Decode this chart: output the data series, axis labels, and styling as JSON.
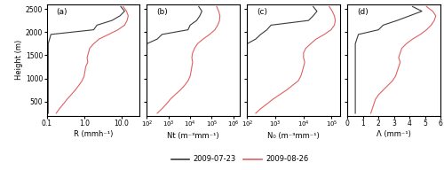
{
  "height": [
    250,
    350,
    450,
    550,
    650,
    750,
    850,
    950,
    1050,
    1150,
    1250,
    1350,
    1450,
    1550,
    1650,
    1750,
    1850,
    1950,
    2050,
    2150,
    2250,
    2350,
    2450,
    2550
  ],
  "R_black": [
    0.11,
    0.11,
    0.11,
    0.11,
    0.11,
    0.11,
    0.11,
    0.11,
    0.11,
    0.11,
    0.11,
    0.11,
    0.11,
    0.11,
    0.11,
    0.11,
    0.12,
    0.13,
    1.8,
    2.2,
    5.5,
    9.0,
    12.0,
    9.5
  ],
  "R_red": [
    0.18,
    0.22,
    0.28,
    0.35,
    0.45,
    0.58,
    0.72,
    0.88,
    1.0,
    1.05,
    1.1,
    1.25,
    1.2,
    1.3,
    1.4,
    1.8,
    2.5,
    4.5,
    8.0,
    12.0,
    14.0,
    15.0,
    13.5,
    11.0
  ],
  "Nt_black": [
    100,
    100,
    100,
    100,
    100,
    100,
    100,
    100,
    100,
    100,
    100,
    100,
    100,
    100,
    100,
    100,
    300,
    500,
    8000,
    10000,
    20000,
    28000,
    35000,
    25000
  ],
  "Nt_red": [
    300,
    500,
    800,
    1200,
    2000,
    3500,
    5500,
    8000,
    10000,
    11000,
    12000,
    13000,
    12000,
    13000,
    16000,
    22000,
    40000,
    80000,
    140000,
    190000,
    230000,
    240000,
    210000,
    170000
  ],
  "N0_black": [
    100,
    100,
    100,
    100,
    100,
    100,
    100,
    100,
    100,
    100,
    100,
    100,
    100,
    100,
    100,
    100,
    200,
    300,
    500,
    700,
    15000,
    22000,
    30000,
    22000
  ],
  "N0_red": [
    200,
    300,
    500,
    800,
    1400,
    2500,
    4000,
    6500,
    8000,
    9000,
    10000,
    11000,
    10000,
    10000,
    12000,
    18000,
    28000,
    55000,
    95000,
    125000,
    135000,
    125000,
    105000,
    82000
  ],
  "La_black": [
    0.5,
    0.5,
    0.5,
    0.5,
    0.5,
    0.5,
    0.5,
    0.5,
    0.5,
    0.5,
    0.5,
    0.5,
    0.5,
    0.5,
    0.5,
    0.5,
    0.6,
    0.7,
    2.0,
    2.3,
    3.2,
    4.0,
    4.8,
    4.2
  ],
  "La_red": [
    1.5,
    1.6,
    1.7,
    1.8,
    2.0,
    2.3,
    2.6,
    2.9,
    3.1,
    3.2,
    3.3,
    3.4,
    3.3,
    3.4,
    3.5,
    3.8,
    4.2,
    4.7,
    5.1,
    5.4,
    5.6,
    5.7,
    5.5,
    5.1
  ],
  "color_black": "#3a3a3a",
  "color_red": "#e06060",
  "ylim": [
    200,
    2600
  ],
  "yticks": [
    500,
    1000,
    1500,
    2000,
    2500
  ],
  "panel_labels": [
    "(a)",
    "(b)",
    "(c)",
    "(d)"
  ],
  "xlabels_raw": [
    "R (mmh⁻¹)",
    "Nt (m⁻³mm⁻¹)",
    "N₀ (m⁻³mm⁻¹)",
    "Λ (mm⁻¹)"
  ],
  "legend_labels": [
    "2009-07-23",
    "2009-08-26"
  ],
  "xlim_a": [
    0.1,
    30
  ],
  "xlim_b": [
    100,
    2000000
  ],
  "xlim_c": [
    100,
    200000
  ],
  "xlim_d": [
    0,
    6
  ],
  "xticks_a": [
    0.1,
    1.0,
    10.0
  ],
  "xticklabels_a": [
    "0.1",
    "1.0",
    "10.0"
  ],
  "xticks_b": [
    100,
    1000,
    10000,
    100000,
    1000000
  ],
  "xticks_c": [
    100,
    1000,
    10000,
    100000
  ],
  "xticks_d": [
    0,
    1,
    2,
    3,
    4,
    5,
    6
  ]
}
